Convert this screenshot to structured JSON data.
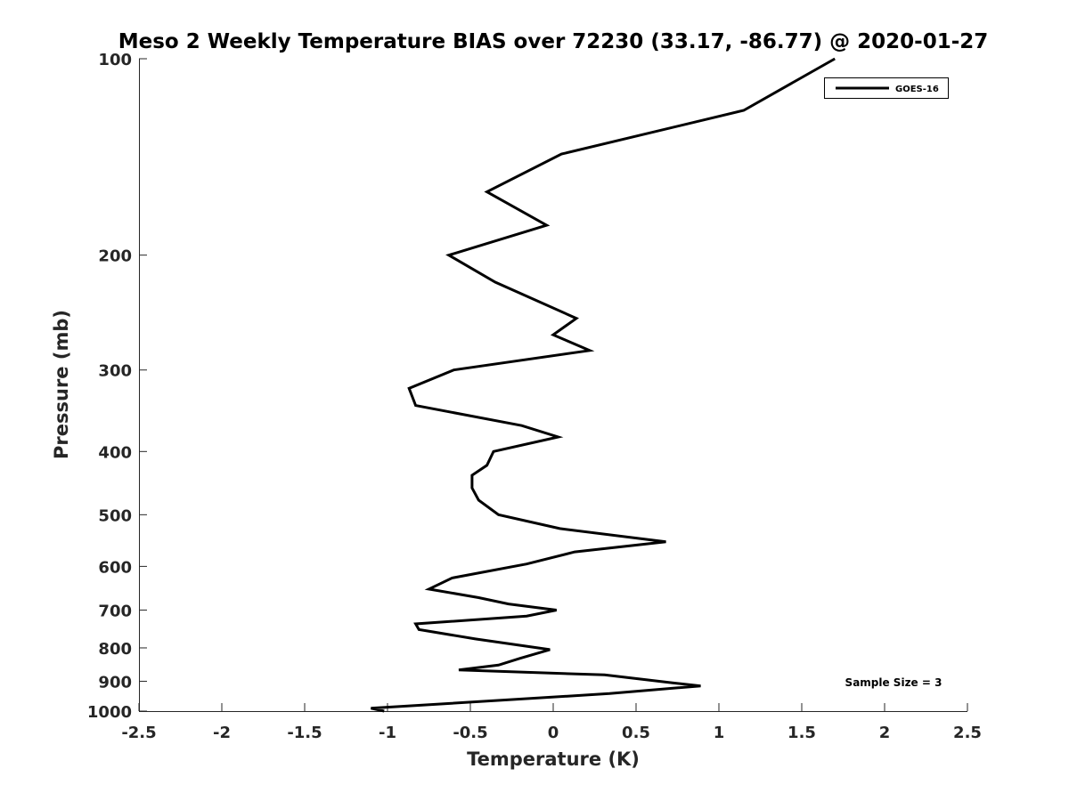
{
  "chart_data": {
    "type": "line",
    "title": "Meso 2 Weekly Temperature BIAS over 72230 (33.17, -86.77) @ 2020-01-27",
    "xlabel": "Temperature (K)",
    "ylabel": "Pressure (mb)",
    "xlim": [
      -2.5,
      2.5
    ],
    "ylim": [
      100,
      1000
    ],
    "y_scale": "log",
    "y_reversed": true,
    "x_ticks": [
      "-2.5",
      "-2",
      "-1.5",
      "-1",
      "-0.5",
      "0",
      "0.5",
      "1",
      "1.5",
      "2",
      "2.5"
    ],
    "x_tick_values": [
      -2.5,
      -2,
      -1.5,
      -1,
      -0.5,
      0,
      0.5,
      1,
      1.5,
      2,
      2.5
    ],
    "y_ticks": [
      "100",
      "200",
      "300",
      "400",
      "500",
      "600",
      "700",
      "800",
      "900",
      "1000"
    ],
    "y_tick_values": [
      100,
      200,
      300,
      400,
      500,
      600,
      700,
      800,
      900,
      1000
    ],
    "grid": false,
    "legend_position": "top-right",
    "annotation": "Sample Size = 3",
    "series": [
      {
        "name": "GOES-16",
        "color": "#000000",
        "points": [
          {
            "x": 1.7,
            "p": 100
          },
          {
            "x": 1.15,
            "p": 120
          },
          {
            "x": 0.05,
            "p": 140
          },
          {
            "x": -0.4,
            "p": 160
          },
          {
            "x": -0.04,
            "p": 180
          },
          {
            "x": -0.63,
            "p": 200
          },
          {
            "x": -0.35,
            "p": 220
          },
          {
            "x": 0.14,
            "p": 250
          },
          {
            "x": 0.0,
            "p": 265
          },
          {
            "x": 0.22,
            "p": 280
          },
          {
            "x": -0.6,
            "p": 300
          },
          {
            "x": -0.87,
            "p": 320
          },
          {
            "x": -0.83,
            "p": 340
          },
          {
            "x": -0.19,
            "p": 365
          },
          {
            "x": 0.03,
            "p": 380
          },
          {
            "x": -0.36,
            "p": 400
          },
          {
            "x": -0.4,
            "p": 420
          },
          {
            "x": -0.49,
            "p": 435
          },
          {
            "x": -0.49,
            "p": 455
          },
          {
            "x": -0.45,
            "p": 475
          },
          {
            "x": -0.33,
            "p": 500
          },
          {
            "x": 0.04,
            "p": 525
          },
          {
            "x": 0.68,
            "p": 550
          },
          {
            "x": 0.13,
            "p": 570
          },
          {
            "x": -0.16,
            "p": 595
          },
          {
            "x": -0.61,
            "p": 625
          },
          {
            "x": -0.75,
            "p": 650
          },
          {
            "x": -0.45,
            "p": 670
          },
          {
            "x": -0.27,
            "p": 685
          },
          {
            "x": 0.02,
            "p": 700
          },
          {
            "x": -0.16,
            "p": 715
          },
          {
            "x": -0.83,
            "p": 735
          },
          {
            "x": -0.81,
            "p": 750
          },
          {
            "x": -0.47,
            "p": 775
          },
          {
            "x": -0.02,
            "p": 805
          },
          {
            "x": -0.2,
            "p": 830
          },
          {
            "x": -0.33,
            "p": 850
          },
          {
            "x": -0.57,
            "p": 865
          },
          {
            "x": 0.31,
            "p": 880
          },
          {
            "x": 0.72,
            "p": 905
          },
          {
            "x": 0.89,
            "p": 915
          },
          {
            "x": 0.34,
            "p": 940
          },
          {
            "x": -1.1,
            "p": 990
          },
          {
            "x": -1.02,
            "p": 1000
          }
        ]
      }
    ]
  }
}
